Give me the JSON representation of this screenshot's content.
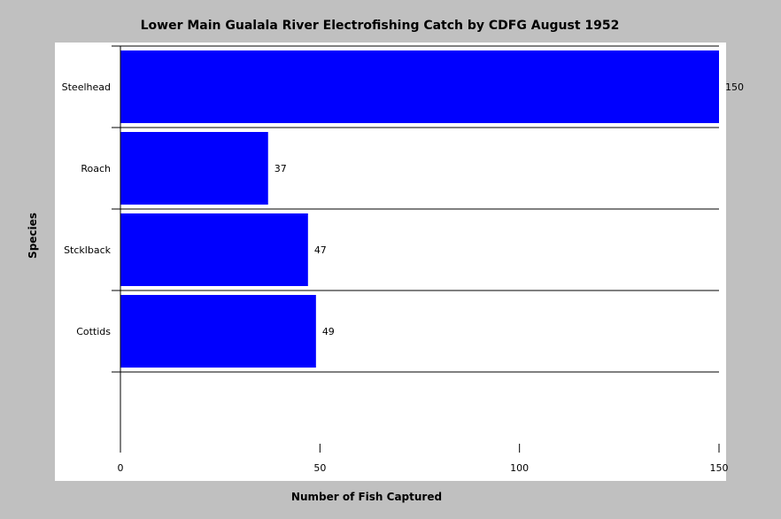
{
  "chart_data": {
    "type": "bar",
    "orientation": "horizontal",
    "title": "Lower Main Gualala River Electrofishing Catch by CDFG August 1952",
    "xlabel": "Number of Fish Captured",
    "ylabel": "Species",
    "categories": [
      "Steelhead",
      "Roach",
      "Stcklback",
      "Cottids"
    ],
    "values": [
      150,
      37,
      47,
      49
    ],
    "xlim": [
      0,
      150
    ],
    "xticks": [
      0,
      50,
      100,
      150
    ],
    "bar_color": "#0000ff",
    "legend": false,
    "grid": false
  }
}
